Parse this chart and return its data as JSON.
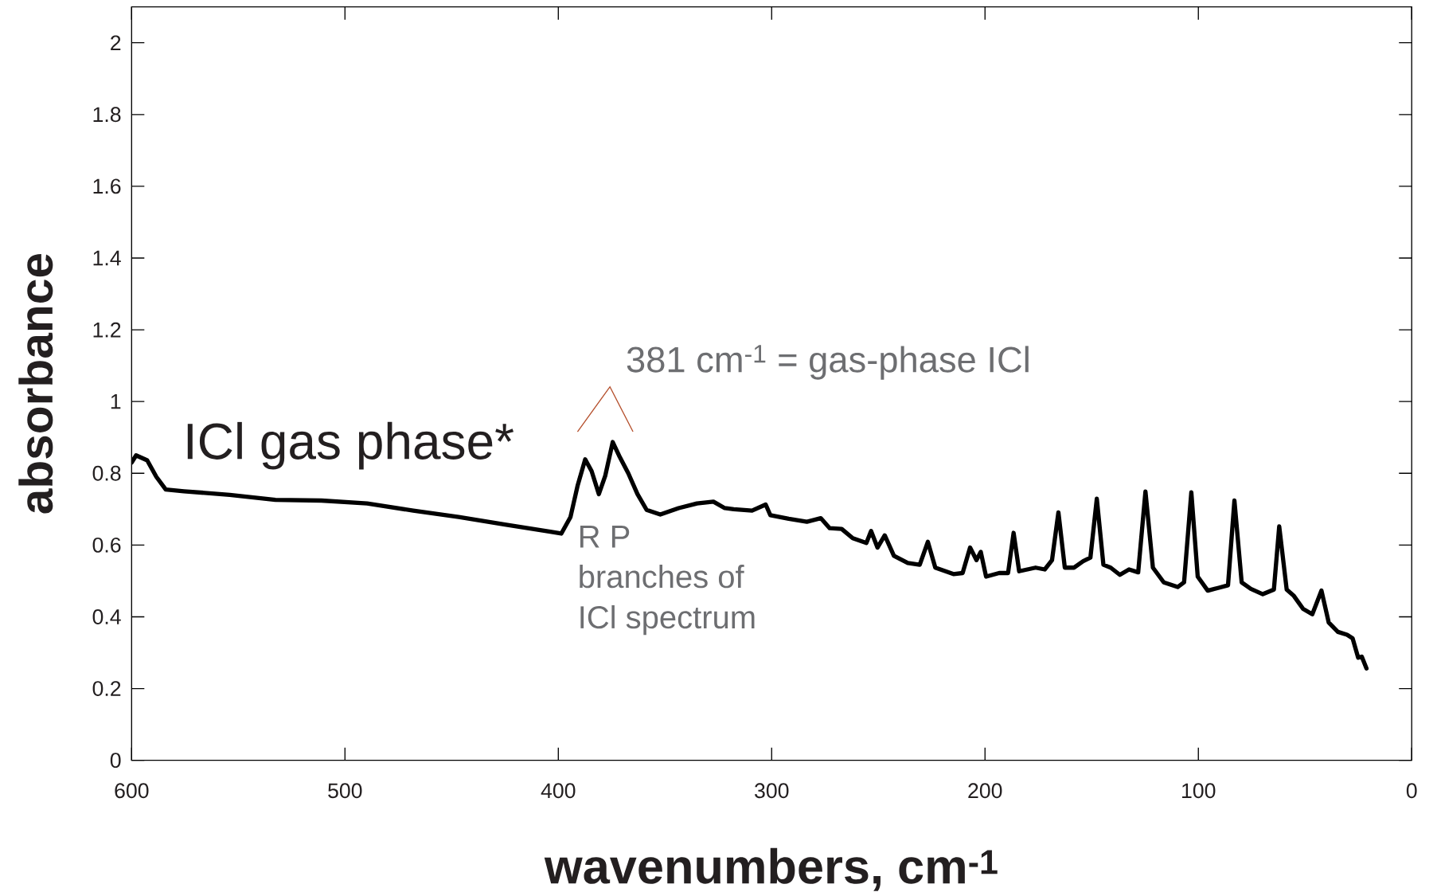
{
  "chart_data": {
    "type": "line",
    "xlabel": "wavenumbers, cm$^{-1}$",
    "ylabel": "absorbance",
    "xlim": [
      600,
      0
    ],
    "ylim": [
      0,
      2.1
    ],
    "xticks": [
      600,
      500,
      400,
      300,
      200,
      100,
      0
    ],
    "yticks": [
      0,
      0.2,
      0.4,
      0.6,
      0.8,
      1,
      1.2,
      1.4,
      1.6,
      1.8,
      2
    ],
    "grid": false,
    "marker": "none",
    "line_style": "solid",
    "annotations": [
      "ICl gas phase*",
      "381 cm$^{-1}$ = gas-phase ICl",
      "R P",
      "branches of",
      "ICl spectrum"
    ],
    "series": [
      {
        "color": "#000000",
        "x": [
          600,
          597.9,
          592.7,
          588.4,
          584,
          575.5,
          554,
          532.6,
          511,
          489.6,
          468,
          446.7,
          425,
          403.7,
          398.6,
          394.3,
          390.9,
          387.4,
          384.4,
          381,
          378,
          374.5,
          371.5,
          367.2,
          362.9,
          358.6,
          352.2,
          343.6,
          335,
          327.3,
          322,
          317.8,
          309.2,
          302.8,
          300.6,
          292,
          283.5,
          277,
          272.8,
          267.2,
          262,
          255.6,
          253.4,
          250.4,
          247,
          242.7,
          236.2,
          230.6,
          226.8,
          223.3,
          214.8,
          210.5,
          207,
          204,
          202,
          199.5,
          193.4,
          189.2,
          186.6,
          184,
          176.3,
          172,
          168.6,
          165.6,
          162.6,
          158.3,
          154,
          150.6,
          147.6,
          144.5,
          141.1,
          136.8,
          132.5,
          128.2,
          124.8,
          121.3,
          116.2,
          109.7,
          106.7,
          103.3,
          100.3,
          95.6,
          90.4,
          86.1,
          83.1,
          79.7,
          75.4,
          69.8,
          64.6,
          62.1,
          58.6,
          55.2,
          50.9,
          46.6,
          42.3,
          38.9,
          34.6,
          30.3,
          27.7,
          25.1,
          23.4,
          21.2
        ],
        "values": [
          0.83,
          0.85,
          0.836,
          0.79,
          0.755,
          0.75,
          0.74,
          0.726,
          0.724,
          0.716,
          0.696,
          0.678,
          0.657,
          0.637,
          0.632,
          0.678,
          0.767,
          0.839,
          0.806,
          0.742,
          0.793,
          0.887,
          0.849,
          0.8,
          0.742,
          0.698,
          0.685,
          0.703,
          0.716,
          0.721,
          0.703,
          0.7,
          0.696,
          0.713,
          0.683,
          0.673,
          0.665,
          0.675,
          0.647,
          0.645,
          0.619,
          0.606,
          0.639,
          0.593,
          0.627,
          0.57,
          0.55,
          0.545,
          0.609,
          0.537,
          0.519,
          0.522,
          0.593,
          0.558,
          0.581,
          0.512,
          0.522,
          0.522,
          0.634,
          0.527,
          0.537,
          0.532,
          0.558,
          0.691,
          0.537,
          0.537,
          0.555,
          0.565,
          0.729,
          0.545,
          0.537,
          0.517,
          0.532,
          0.524,
          0.749,
          0.537,
          0.496,
          0.483,
          0.496,
          0.747,
          0.512,
          0.473,
          0.481,
          0.488,
          0.724,
          0.496,
          0.478,
          0.463,
          0.476,
          0.652,
          0.476,
          0.458,
          0.422,
          0.407,
          0.473,
          0.384,
          0.358,
          0.35,
          0.34,
          0.286,
          0.289,
          0.256
        ]
      }
    ]
  }
}
